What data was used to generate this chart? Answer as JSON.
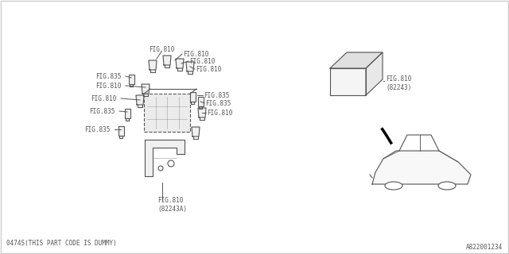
{
  "background_color": "#ffffff",
  "border_color": "#cccccc",
  "line_color": "#555555",
  "text_color": "#555555",
  "bottom_left_text": "0474S(THIS PART CODE IS DUMMY)",
  "bottom_right_text": "A822001234",
  "fig810_label": "FIG.810",
  "fig835_label": "FIG.835",
  "fig810_82243_label": "FIG.810\n(82243)",
  "fig810_82243A_label": "FIG.810\n(82243A)",
  "font_size": 5.5
}
